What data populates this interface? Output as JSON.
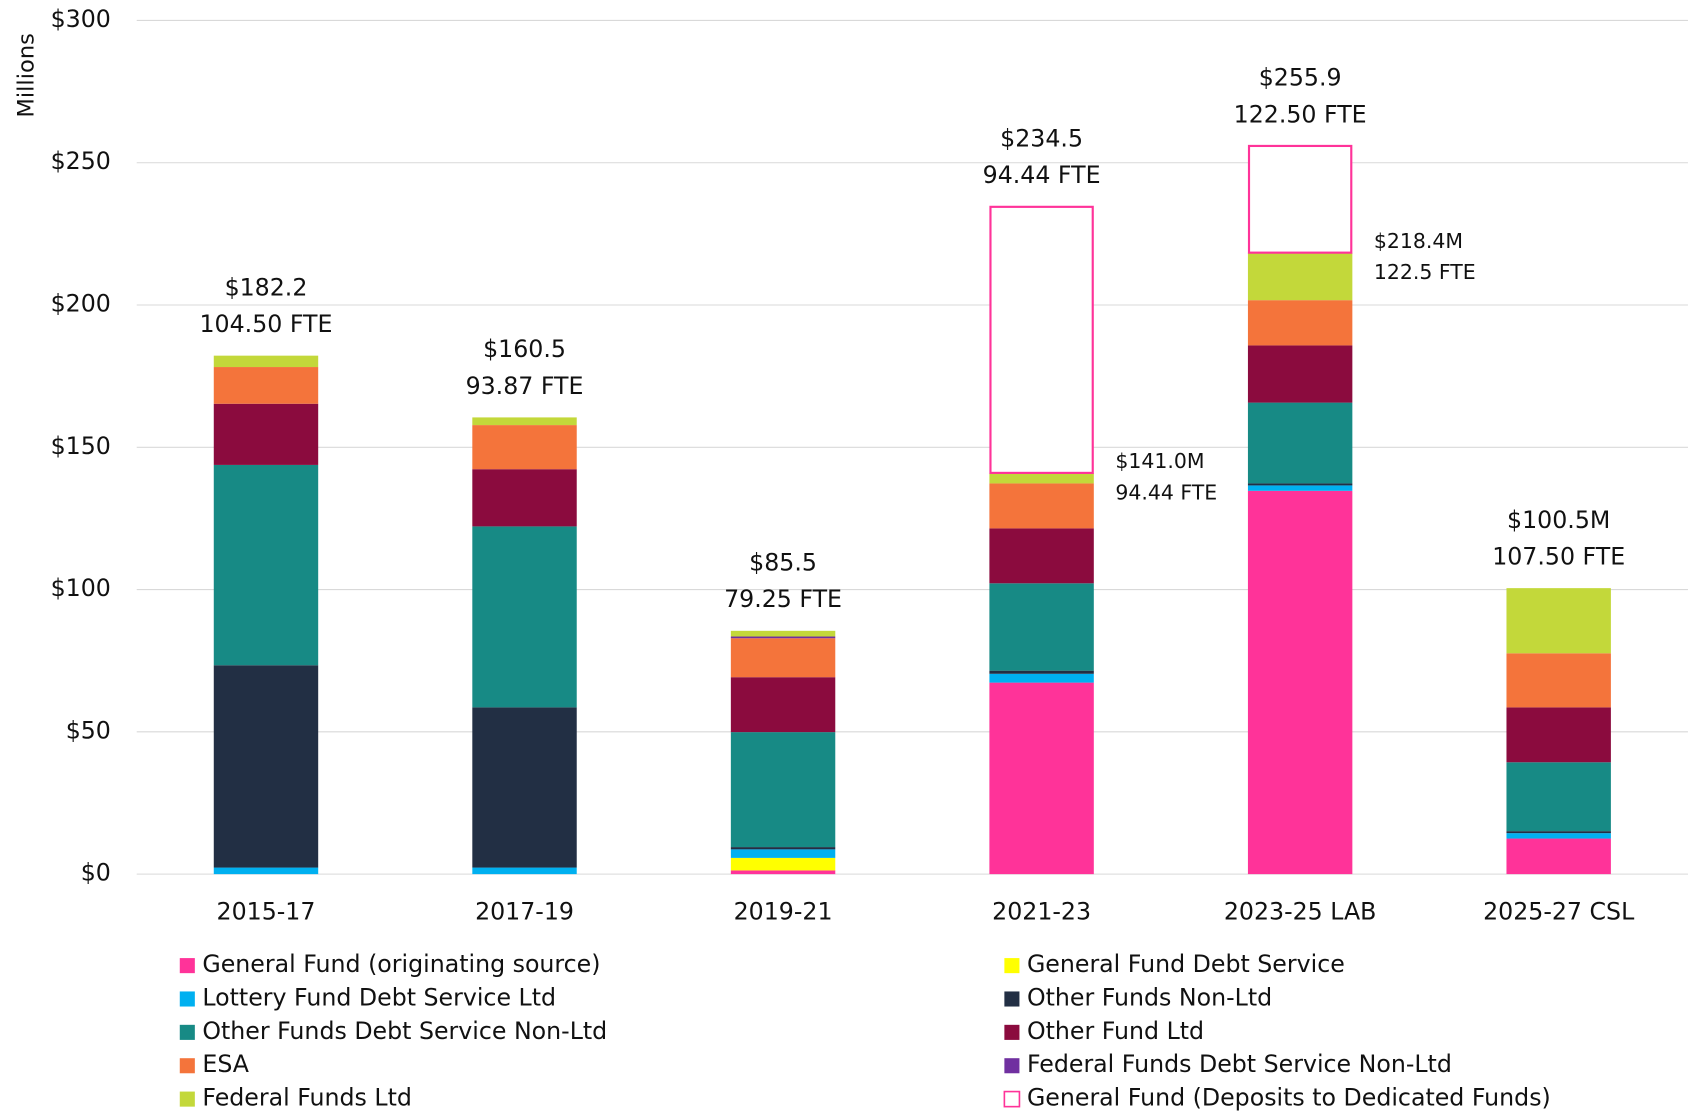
{
  "chart_data": {
    "type": "stacked_bar",
    "y_axis_label": "Millions",
    "categories": [
      "2015-17",
      "2017-19",
      "2019-21",
      "2021-23",
      "2023-25 LAB",
      "2025-27 CSL"
    ],
    "series": [
      {
        "name": "General Fund (originating source)",
        "color": "#ff3399",
        "values": [
          0,
          0,
          1.3,
          67.3,
          134.7,
          12.5
        ]
      },
      {
        "name": "General Fund Debt Service",
        "color": "#ffff00",
        "values": [
          0,
          0,
          4.4,
          0,
          0,
          0
        ]
      },
      {
        "name": "Lottery Fund Debt Service Ltd",
        "color": "#00b0f0",
        "values": [
          2.3,
          2.3,
          3.0,
          3.1,
          1.9,
          1.9
        ]
      },
      {
        "name": "Other Funds Non-Ltd",
        "color": "#222f44",
        "values": [
          71.1,
          56.3,
          0.8,
          1.1,
          0.7,
          0.7
        ]
      },
      {
        "name": "Other Funds Debt Service Non-Ltd",
        "color": "#178a85",
        "values": [
          70.4,
          63.6,
          40.4,
          30.7,
          28.4,
          24.2
        ]
      },
      {
        "name": "Other Fund Ltd",
        "color": "#8b0b3e",
        "values": [
          21.5,
          20.1,
          19.3,
          19.3,
          20.1,
          19.3
        ]
      },
      {
        "name": "ESA",
        "color": "#f4743b",
        "values": [
          12.9,
          15.5,
          13.7,
          15.8,
          15.9,
          19.0
        ]
      },
      {
        "name": "Federal Funds Debt Service Non-Ltd",
        "color": "#7030a0",
        "values": [
          0,
          0,
          0.6,
          0,
          0,
          0
        ]
      },
      {
        "name": "Federal Funds Ltd",
        "color": "#c3d83a",
        "values": [
          4.0,
          2.7,
          2.0,
          3.7,
          16.7,
          22.9
        ]
      },
      {
        "name": "General Fund (Deposits to Dedicated Funds)",
        "color": "#ff3399",
        "style": "outline",
        "values": [
          0,
          0,
          0,
          93.5,
          37.5,
          0
        ]
      }
    ],
    "total_labels": [
      [
        "$182.2",
        "104.50 FTE"
      ],
      [
        "$160.5",
        "93.87 FTE"
      ],
      [
        "$85.5",
        "79.25 FTE"
      ],
      [
        "$234.5",
        "94.44 FTE"
      ],
      [
        "$255.9",
        "122.50 FTE"
      ],
      [
        "$100.5M",
        "107.50 FTE"
      ]
    ],
    "side_labels": [
      null,
      null,
      null,
      [
        "$141.0M",
        "94.44 FTE"
      ],
      [
        "$218.4M",
        "122.5 FTE"
      ],
      null
    ],
    "ylim": [
      0,
      300
    ],
    "yticks": [
      {
        "value": 0,
        "label": "$0"
      },
      {
        "value": 50,
        "label": "$50"
      },
      {
        "value": 100,
        "label": "$100"
      },
      {
        "value": 150,
        "label": "$150"
      },
      {
        "value": 200,
        "label": "$200"
      },
      {
        "value": 250,
        "label": "$250"
      },
      {
        "value": 300,
        "label": "$300"
      }
    ],
    "grid": true,
    "legend": "bottom"
  }
}
